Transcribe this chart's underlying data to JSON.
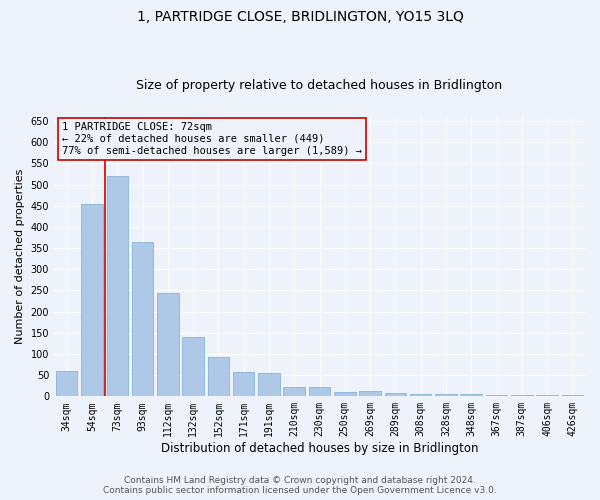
{
  "title": "1, PARTRIDGE CLOSE, BRIDLINGTON, YO15 3LQ",
  "subtitle": "Size of property relative to detached houses in Bridlington",
  "xlabel": "Distribution of detached houses by size in Bridlington",
  "ylabel": "Number of detached properties",
  "categories": [
    "34sqm",
    "54sqm",
    "73sqm",
    "93sqm",
    "112sqm",
    "132sqm",
    "152sqm",
    "171sqm",
    "191sqm",
    "210sqm",
    "230sqm",
    "250sqm",
    "269sqm",
    "289sqm",
    "308sqm",
    "328sqm",
    "348sqm",
    "367sqm",
    "387sqm",
    "406sqm",
    "426sqm"
  ],
  "values": [
    60,
    455,
    520,
    365,
    245,
    140,
    92,
    58,
    55,
    22,
    22,
    10,
    12,
    8,
    6,
    6,
    5,
    4,
    4,
    4,
    3
  ],
  "bar_color": "#aec8e8",
  "bar_edgecolor": "#8ab4d8",
  "vline_x": 1.5,
  "vline_color": "#cc0000",
  "annotation_box_text": "1 PARTRIDGE CLOSE: 72sqm\n← 22% of detached houses are smaller (449)\n77% of semi-detached houses are larger (1,589) →",
  "ylim": [
    0,
    660
  ],
  "yticks": [
    0,
    50,
    100,
    150,
    200,
    250,
    300,
    350,
    400,
    450,
    500,
    550,
    600,
    650
  ],
  "background_color": "#eef2fa",
  "plot_bg_color": "#eef2fa",
  "footer_line1": "Contains HM Land Registry data © Crown copyright and database right 2024.",
  "footer_line2": "Contains public sector information licensed under the Open Government Licence v3.0.",
  "title_fontsize": 10,
  "subtitle_fontsize": 9,
  "xlabel_fontsize": 8.5,
  "ylabel_fontsize": 8,
  "tick_fontsize": 7,
  "footer_fontsize": 6.5,
  "annotation_fontsize": 7.5
}
